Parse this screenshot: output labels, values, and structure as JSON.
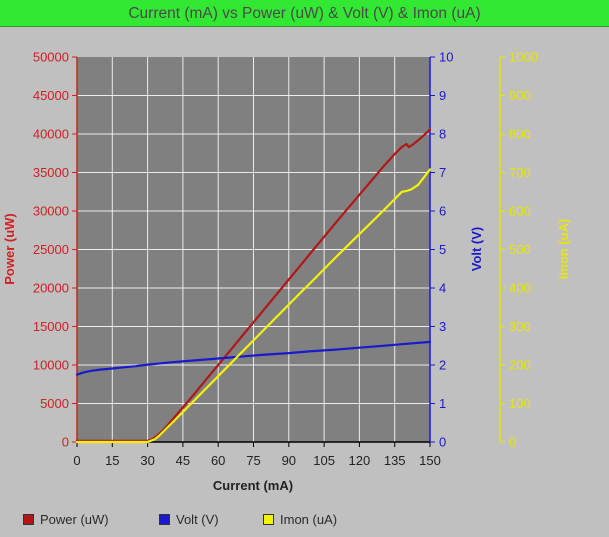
{
  "chart_data": {
    "type": "line",
    "title": "Current (mA) vs Power (uW) & Volt (V) & Imon (uA)",
    "xlabel": "Current (mA)",
    "xlim": [
      0,
      150
    ],
    "xticks": [
      0,
      15,
      30,
      45,
      60,
      75,
      90,
      105,
      120,
      135,
      150
    ],
    "grid": true,
    "legend_position": "bottom",
    "axes": [
      {
        "id": "power",
        "label": "Power (uW)",
        "side": "left",
        "range": [
          0,
          50000
        ],
        "ticks": [
          0,
          5000,
          10000,
          15000,
          20000,
          25000,
          30000,
          35000,
          40000,
          45000,
          50000
        ],
        "color": "#cc2222"
      },
      {
        "id": "volt",
        "label": "Volt (V)",
        "side": "right",
        "range": [
          0,
          10
        ],
        "ticks": [
          0,
          1,
          2,
          3,
          4,
          5,
          6,
          7,
          8,
          9,
          10
        ],
        "color": "#1a1acc"
      },
      {
        "id": "imon",
        "label": "Imon (uA)",
        "side": "right",
        "range": [
          0,
          1000
        ],
        "ticks": [
          0,
          100,
          200,
          300,
          400,
          500,
          600,
          700,
          800,
          900,
          1000
        ],
        "color": "#e6e600"
      }
    ],
    "series": [
      {
        "name": "Power (uW)",
        "axis": "power",
        "color": "#b01818",
        "x": [
          0,
          15,
          28,
          30,
          32,
          34,
          36,
          38,
          40,
          45,
          50,
          55,
          60,
          65,
          70,
          75,
          80,
          85,
          90,
          95,
          100,
          105,
          110,
          115,
          120,
          125,
          130,
          135,
          138,
          140,
          141,
          143,
          145,
          148,
          150
        ],
        "y": [
          150,
          150,
          150,
          150,
          350,
          800,
          1350,
          2000,
          2700,
          4500,
          6300,
          8150,
          10000,
          11850,
          13700,
          15550,
          17400,
          19250,
          21100,
          22950,
          24800,
          26650,
          28500,
          30300,
          32100,
          33900,
          35700,
          37400,
          38300,
          38700,
          38300,
          38700,
          39200,
          40000,
          40600
        ]
      },
      {
        "name": "Volt (V)",
        "axis": "volt",
        "color": "#1a1acc",
        "x": [
          0,
          3,
          6,
          10,
          15,
          20,
          25,
          30,
          40,
          50,
          60,
          70,
          80,
          90,
          100,
          110,
          120,
          130,
          140,
          150
        ],
        "y": [
          1.75,
          1.81,
          1.85,
          1.88,
          1.91,
          1.94,
          1.97,
          2.01,
          2.07,
          2.12,
          2.17,
          2.22,
          2.27,
          2.31,
          2.36,
          2.4,
          2.45,
          2.5,
          2.55,
          2.6
        ]
      },
      {
        "name": "Imon (uA)",
        "axis": "imon",
        "color": "#f2f20a",
        "x": [
          0,
          15,
          30,
          33,
          35,
          38,
          40,
          45,
          50,
          55,
          60,
          65,
          70,
          75,
          80,
          85,
          90,
          95,
          100,
          105,
          110,
          115,
          120,
          125,
          130,
          135,
          138,
          140,
          142,
          145,
          150
        ],
        "y": [
          0,
          0,
          0,
          7,
          17,
          35,
          47,
          78,
          109,
          140,
          171,
          202,
          233,
          264,
          295,
          326,
          357,
          388,
          418,
          449,
          480,
          510,
          540,
          570,
          600,
          631,
          650,
          652,
          656,
          668,
          708
        ]
      }
    ]
  }
}
